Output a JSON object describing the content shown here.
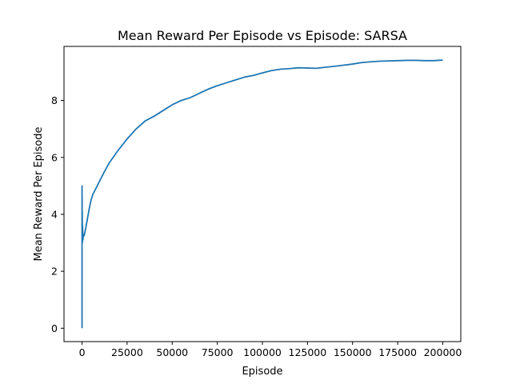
{
  "chart_data": {
    "type": "line",
    "title": "Mean Reward Per Episode vs Episode: SARSA",
    "xlabel": "Episode",
    "ylabel": "Mean Reward Per Episode",
    "xlim": [
      -10000,
      210000
    ],
    "ylim": [
      -0.47,
      9.9
    ],
    "xticks": [
      0,
      25000,
      50000,
      75000,
      100000,
      125000,
      150000,
      175000,
      200000
    ],
    "xtick_labels": [
      "0",
      "25000",
      "50000",
      "75000",
      "100000",
      "125000",
      "150000",
      "175000",
      "200000"
    ],
    "yticks": [
      0,
      2,
      4,
      6,
      8
    ],
    "ytick_labels": [
      "0",
      "2",
      "4",
      "6",
      "8"
    ],
    "grid": false,
    "legend": "none",
    "line_color": "#1f77b4",
    "series": [
      {
        "name": "",
        "x": [
          0,
          5,
          10,
          20,
          30,
          50,
          80,
          120,
          200,
          300,
          500,
          800,
          1200,
          2000,
          3000,
          4000,
          5000,
          6000,
          8000,
          10000,
          12000,
          15000,
          20000,
          25000,
          30000,
          35000,
          40000,
          45000,
          50000,
          55000,
          60000,
          65000,
          70000,
          75000,
          80000,
          85000,
          90000,
          95000,
          100000,
          105000,
          110000,
          115000,
          120000,
          125000,
          130000,
          135000,
          140000,
          145000,
          150000,
          155000,
          160000,
          165000,
          170000,
          175000,
          180000,
          185000,
          190000,
          195000,
          200000
        ],
        "values": [
          0.0,
          5.0,
          4.2,
          4.9,
          3.8,
          4.6,
          3.3,
          4.1,
          3.0,
          3.6,
          3.1,
          3.3,
          3.25,
          3.5,
          3.85,
          4.2,
          4.5,
          4.7,
          4.95,
          5.2,
          5.45,
          5.8,
          6.25,
          6.65,
          7.0,
          7.28,
          7.45,
          7.65,
          7.85,
          8.0,
          8.1,
          8.25,
          8.4,
          8.52,
          8.62,
          8.72,
          8.82,
          8.88,
          8.97,
          9.05,
          9.1,
          9.12,
          9.15,
          9.14,
          9.13,
          9.17,
          9.2,
          9.24,
          9.28,
          9.33,
          9.36,
          9.38,
          9.39,
          9.4,
          9.41,
          9.41,
          9.4,
          9.4,
          9.42
        ]
      }
    ]
  }
}
